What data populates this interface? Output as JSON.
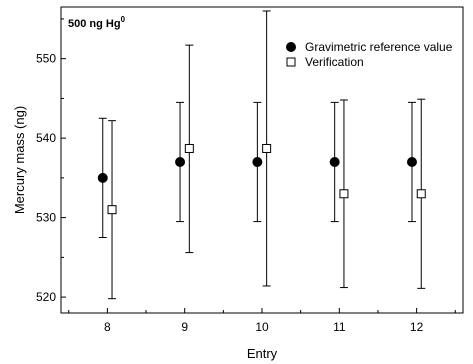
{
  "chart_data": {
    "type": "scatter",
    "annotation": {
      "text": "500 ng Hg",
      "superscript": "0"
    },
    "xlabel": "Entry",
    "ylabel": "Mercury mass (ng)",
    "x_ticks": [
      8,
      9,
      10,
      11,
      12
    ],
    "y_ticks": [
      520,
      530,
      540,
      550
    ],
    "ylim": [
      518,
      556.5
    ],
    "xlim": [
      7.4,
      12.6
    ],
    "legend_position": "top-right",
    "series": [
      {
        "name": "Gravimetric reference value",
        "marker": "filled-circle",
        "x_offset": -0.06,
        "points": [
          {
            "x": 8,
            "y": 535,
            "low": 527.5,
            "high": 542.5
          },
          {
            "x": 9,
            "y": 537,
            "low": 529.5,
            "high": 544.5
          },
          {
            "x": 10,
            "y": 537,
            "low": 529.5,
            "high": 544.5
          },
          {
            "x": 11,
            "y": 537,
            "low": 529.5,
            "high": 544.5
          },
          {
            "x": 12,
            "y": 537,
            "low": 529.5,
            "high": 544.5
          }
        ]
      },
      {
        "name": "Verification",
        "marker": "open-square",
        "x_offset": 0.06,
        "points": [
          {
            "x": 8,
            "y": 531,
            "low": 519.8,
            "high": 542.2
          },
          {
            "x": 9,
            "y": 538.7,
            "low": 525.6,
            "high": 551.7
          },
          {
            "x": 10,
            "y": 538.7,
            "low": 521.4,
            "high": 556.0
          },
          {
            "x": 11,
            "y": 533,
            "low": 521.2,
            "high": 544.8
          },
          {
            "x": 12,
            "y": 533,
            "low": 521.1,
            "high": 544.9
          }
        ]
      }
    ]
  }
}
